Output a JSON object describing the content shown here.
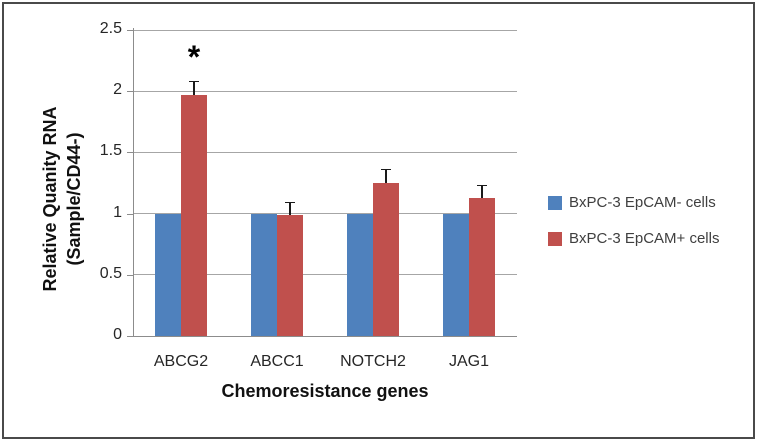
{
  "chart_data": {
    "type": "bar",
    "title": "",
    "xlabel": "Chemoresistance genes",
    "ylabel": "Relative Quanity RNA (Sample/CD44-)",
    "ylabel_lines": [
      "Relative Quanity RNA",
      "(Sample/CD44-)"
    ],
    "categories": [
      "ABCG2",
      "ABCC1",
      "NOTCH2",
      "JAG1"
    ],
    "series": [
      {
        "name": "BxPC-3 EpCAM- cells",
        "color": "#4F81BD",
        "values": [
          1.0,
          1.0,
          1.0,
          1.0
        ],
        "errors": null
      },
      {
        "name": "BxPC-3 EpCAM+ cells",
        "color": "#C0504D",
        "values": [
          1.97,
          0.99,
          1.25,
          1.13
        ],
        "errors": [
          0.11,
          0.1,
          0.11,
          0.1
        ]
      }
    ],
    "annotations": [
      {
        "text": "*",
        "category": "ABCG2",
        "series": "BxPC-3 EpCAM+ cells"
      }
    ],
    "y_ticks": [
      0,
      0.5,
      1,
      1.5,
      2,
      2.5
    ],
    "ylim": [
      0,
      2.5
    ],
    "grid": true,
    "legend_position": "right",
    "error_bar_direction": "plus"
  },
  "colors": {
    "grid": "#a6a6a6",
    "axis": "#8c8c8c",
    "tick_text": "#262626",
    "legend_text": "#3f3f3f",
    "frame_border": "#4a4a4a",
    "error_bar": "#1a1a1a",
    "annotation": "#000000"
  }
}
